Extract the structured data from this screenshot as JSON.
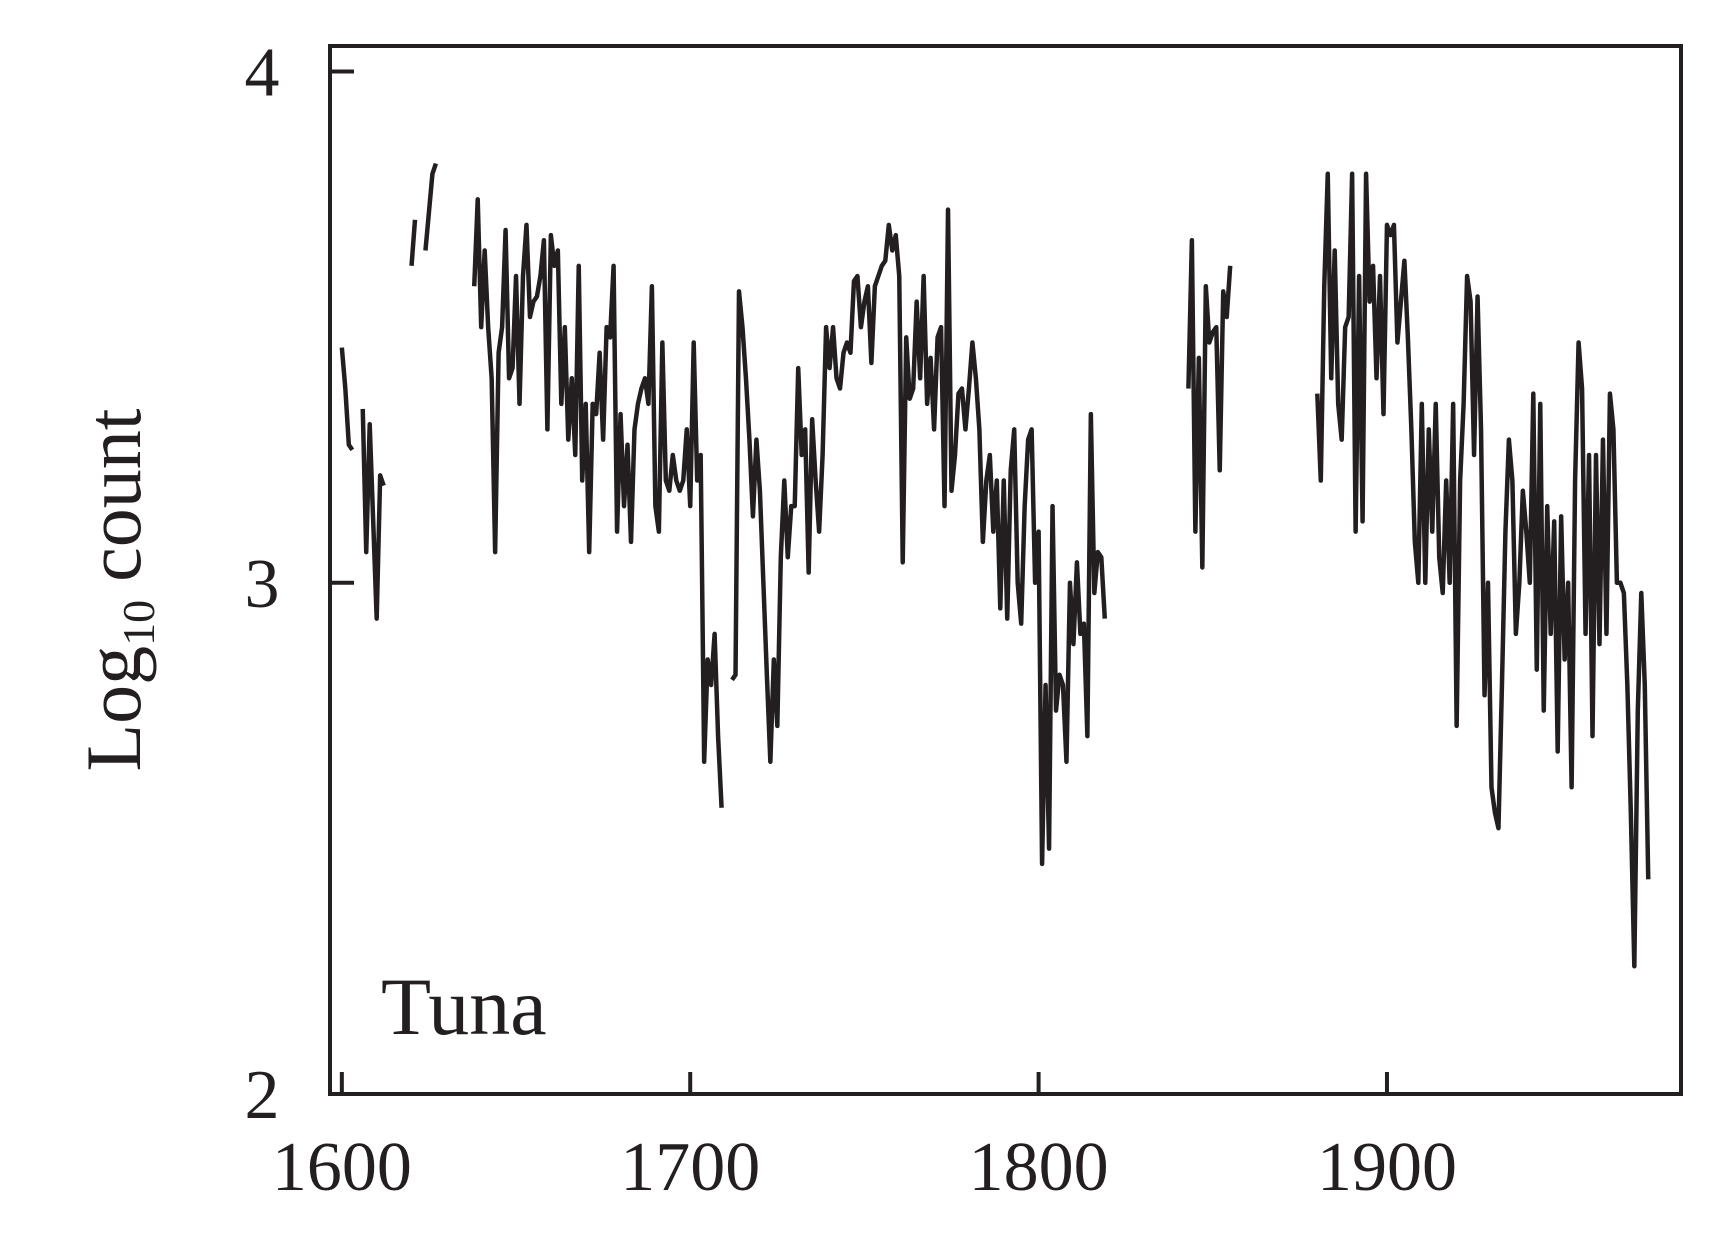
{
  "chart_data": {
    "type": "line",
    "ylabel_parts": [
      "Log",
      "10",
      "count"
    ],
    "annotation": "Tuna",
    "xlim": [
      1596.6,
      1984.4
    ],
    "ylim": [
      2,
      4.05
    ],
    "xticks": [
      1600,
      1700,
      1800,
      1900
    ],
    "yticks": [
      2,
      3,
      4
    ],
    "grid": false,
    "x": [
      1600,
      1601,
      1602,
      1603,
      1604,
      1606,
      1607,
      1608,
      1609,
      1610,
      1611,
      1612,
      1613,
      1620,
      1621,
      1622,
      1624,
      1626,
      1627,
      1630,
      1638,
      1639,
      1640,
      1641,
      1642,
      1643,
      1644,
      1645,
      1646,
      1647,
      1648,
      1649,
      1650,
      1651,
      1652,
      1653,
      1654,
      1655,
      1656,
      1657,
      1658,
      1659,
      1660,
      1661,
      1662,
      1663,
      1664,
      1665,
      1666,
      1667,
      1668,
      1669,
      1670,
      1671,
      1672,
      1673,
      1674,
      1675,
      1676,
      1677,
      1678,
      1679,
      1680,
      1681,
      1682,
      1683,
      1684,
      1685,
      1686,
      1687,
      1688,
      1689,
      1690,
      1691,
      1692,
      1693,
      1694,
      1695,
      1696,
      1697,
      1698,
      1699,
      1700,
      1701,
      1702,
      1703,
      1704,
      1705,
      1706,
      1707,
      1708,
      1709,
      1710,
      1712,
      1713,
      1714,
      1715,
      1716,
      1717,
      1718,
      1719,
      1720,
      1721,
      1722,
      1723,
      1724,
      1725,
      1726,
      1727,
      1728,
      1729,
      1730,
      1731,
      1732,
      1733,
      1734,
      1735,
      1736,
      1737,
      1738,
      1739,
      1740,
      1741,
      1742,
      1743,
      1744,
      1745,
      1746,
      1747,
      1748,
      1749,
      1750,
      1751,
      1752,
      1753,
      1754,
      1755,
      1756,
      1757,
      1758,
      1759,
      1760,
      1761,
      1762,
      1763,
      1764,
      1765,
      1766,
      1767,
      1768,
      1769,
      1770,
      1771,
      1772,
      1773,
      1774,
      1775,
      1776,
      1777,
      1778,
      1779,
      1780,
      1781,
      1782,
      1783,
      1784,
      1785,
      1786,
      1787,
      1788,
      1789,
      1790,
      1791,
      1792,
      1793,
      1794,
      1795,
      1796,
      1797,
      1798,
      1799,
      1800,
      1801,
      1802,
      1803,
      1804,
      1805,
      1806,
      1807,
      1808,
      1809,
      1810,
      1811,
      1812,
      1813,
      1814,
      1815,
      1816,
      1817,
      1818,
      1819,
      1830,
      1843,
      1844,
      1845,
      1846,
      1847,
      1848,
      1849,
      1850,
      1851,
      1852,
      1853,
      1854,
      1855,
      1870,
      1880,
      1881,
      1882,
      1883,
      1884,
      1885,
      1886,
      1887,
      1888,
      1889,
      1890,
      1891,
      1892,
      1893,
      1894,
      1895,
      1896,
      1897,
      1898,
      1899,
      1900,
      1901,
      1902,
      1903,
      1904,
      1905,
      1906,
      1907,
      1908,
      1909,
      1910,
      1911,
      1912,
      1913,
      1914,
      1915,
      1916,
      1917,
      1918,
      1919,
      1920,
      1921,
      1922,
      1923,
      1924,
      1925,
      1926,
      1927,
      1928,
      1929,
      1930,
      1931,
      1932,
      1933,
      1934,
      1935,
      1936,
      1937,
      1938,
      1939,
      1940,
      1941,
      1942,
      1943,
      1944,
      1945,
      1946,
      1947,
      1948,
      1949,
      1950,
      1951,
      1952,
      1953,
      1954,
      1955,
      1956,
      1957,
      1958,
      1959,
      1960,
      1961,
      1962,
      1963,
      1964,
      1965,
      1966,
      1967,
      1968,
      1969,
      1970,
      1971,
      1972,
      1973,
      1974,
      1975
    ],
    "series": [
      {
        "color": "#231f20",
        "values": [
          3.46,
          3.38,
          3.27,
          3.26,
          null,
          3.34,
          3.06,
          3.31,
          3.12,
          2.93,
          3.21,
          3.19,
          null,
          3.62,
          3.71,
          null,
          3.65,
          3.8,
          3.82,
          null,
          3.58,
          3.75,
          3.5,
          3.65,
          3.5,
          3.4,
          3.06,
          3.45,
          3.5,
          3.69,
          3.4,
          3.42,
          3.6,
          3.35,
          3.6,
          3.7,
          3.52,
          3.55,
          3.56,
          3.6,
          3.67,
          3.3,
          3.68,
          3.62,
          3.65,
          3.35,
          3.5,
          3.28,
          3.4,
          3.25,
          3.62,
          3.2,
          3.35,
          3.06,
          3.35,
          3.33,
          3.45,
          3.28,
          3.5,
          3.48,
          3.62,
          3.1,
          3.33,
          3.15,
          3.27,
          3.08,
          3.3,
          3.35,
          3.38,
          3.4,
          3.35,
          3.58,
          3.15,
          3.1,
          3.47,
          3.2,
          3.18,
          3.25,
          3.2,
          3.18,
          3.2,
          3.3,
          3.15,
          3.47,
          3.2,
          3.25,
          2.65,
          2.85,
          2.8,
          2.9,
          2.7,
          2.56,
          null,
          2.81,
          2.82,
          3.57,
          3.5,
          3.4,
          3.28,
          3.13,
          3.28,
          3.18,
          3.0,
          2.82,
          2.65,
          2.85,
          2.72,
          3.05,
          3.2,
          3.05,
          3.15,
          3.15,
          3.42,
          3.25,
          3.3,
          3.02,
          3.32,
          3.2,
          3.1,
          3.25,
          3.5,
          3.42,
          3.5,
          3.4,
          3.38,
          3.45,
          3.47,
          3.45,
          3.59,
          3.6,
          3.5,
          3.55,
          3.58,
          3.43,
          3.58,
          3.6,
          3.62,
          3.63,
          3.7,
          3.65,
          3.68,
          3.6,
          3.04,
          3.48,
          3.36,
          3.38,
          3.55,
          3.4,
          3.6,
          3.35,
          3.44,
          3.3,
          3.48,
          3.5,
          3.15,
          3.73,
          3.18,
          3.25,
          3.37,
          3.38,
          3.3,
          3.38,
          3.47,
          3.4,
          3.3,
          3.08,
          3.2,
          3.25,
          3.1,
          3.2,
          2.95,
          3.2,
          2.93,
          3.22,
          3.3,
          3.0,
          2.92,
          3.15,
          3.28,
          3.3,
          3.0,
          3.1,
          2.45,
          2.8,
          2.48,
          3.15,
          2.75,
          2.82,
          2.8,
          2.65,
          3.0,
          2.88,
          3.04,
          2.9,
          2.92,
          2.7,
          3.33,
          2.98,
          3.06,
          3.05,
          2.93,
          null,
          3.38,
          3.67,
          3.1,
          3.44,
          3.03,
          3.58,
          3.47,
          3.49,
          3.5,
          3.22,
          3.57,
          3.52,
          3.62,
          null,
          3.37,
          3.2,
          3.58,
          3.8,
          3.4,
          3.65,
          3.35,
          3.28,
          3.5,
          3.52,
          3.8,
          3.1,
          3.6,
          3.12,
          3.8,
          3.55,
          3.62,
          3.4,
          3.6,
          3.33,
          3.7,
          3.68,
          3.7,
          3.47,
          3.55,
          3.63,
          3.48,
          3.3,
          3.08,
          3.0,
          3.35,
          3.0,
          3.3,
          3.1,
          3.35,
          3.05,
          2.98,
          3.2,
          3.0,
          3.35,
          2.72,
          3.2,
          3.35,
          3.6,
          3.55,
          3.25,
          3.56,
          3.3,
          2.78,
          3.0,
          2.6,
          2.55,
          2.52,
          2.8,
          3.1,
          3.28,
          3.2,
          2.9,
          3.0,
          3.18,
          3.1,
          3.0,
          3.37,
          2.83,
          3.35,
          2.75,
          3.15,
          2.9,
          3.12,
          2.67,
          3.13,
          2.85,
          3.0,
          2.6,
          3.2,
          3.47,
          3.38,
          2.9,
          3.25,
          2.7,
          3.25,
          2.88,
          3.28,
          2.9,
          3.37,
          3.3,
          3.0,
          3.0,
          2.98,
          2.8,
          2.55,
          2.25,
          2.75,
          2.98,
          2.8,
          2.42
        ]
      }
    ]
  }
}
